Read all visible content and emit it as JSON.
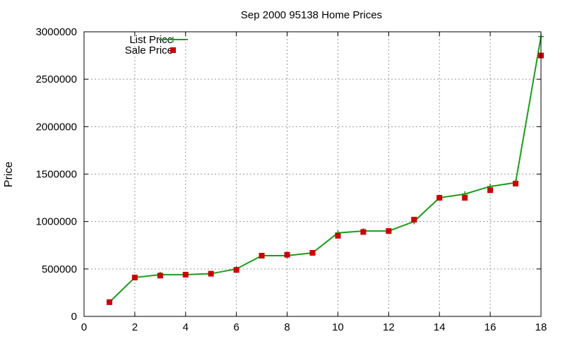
{
  "chart_data": {
    "type": "line",
    "title": "Sep 2000 95138 Home Prices",
    "xlabel": "",
    "ylabel": "Price",
    "xlim": [
      0,
      18
    ],
    "ylim": [
      0,
      3000000
    ],
    "x_ticks": [
      "0",
      "2",
      "4",
      "6",
      "8",
      "10",
      "12",
      "14",
      "16",
      "18"
    ],
    "y_ticks": [
      "0",
      "500000",
      "1000000",
      "1500000",
      "2000000",
      "2500000",
      "3000000"
    ],
    "grid": true,
    "legend_position": "top-left",
    "series": [
      {
        "name": "List Price",
        "style": "line-with-plus-markers",
        "color": "#1a9e1a",
        "x": [
          1,
          2,
          3,
          4,
          5,
          6,
          7,
          8,
          9,
          10,
          11,
          12,
          13,
          14,
          15,
          16,
          17,
          18
        ],
        "values": [
          150000,
          410000,
          440000,
          440000,
          450000,
          500000,
          640000,
          640000,
          670000,
          880000,
          900000,
          900000,
          1000000,
          1250000,
          1290000,
          1370000,
          1410000,
          2950000
        ]
      },
      {
        "name": "Sale Price",
        "style": "square-markers",
        "color": "#cc0000",
        "x": [
          1,
          2,
          3,
          4,
          5,
          6,
          7,
          8,
          9,
          10,
          11,
          12,
          13,
          14,
          15,
          16,
          17,
          18
        ],
        "values": [
          150000,
          410000,
          430000,
          440000,
          450000,
          490000,
          640000,
          650000,
          670000,
          850000,
          890000,
          900000,
          1020000,
          1250000,
          1250000,
          1330000,
          1400000,
          2750000
        ]
      }
    ]
  }
}
